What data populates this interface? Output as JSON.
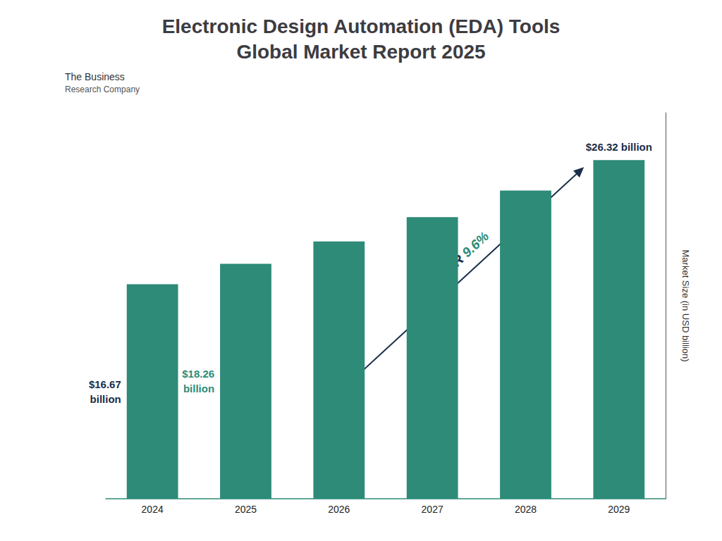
{
  "chart_data": {
    "type": "bar",
    "title": "Electronic Design Automation (EDA) Tools\nGlobal Market Report 2025",
    "categories": [
      "2024",
      "2025",
      "2026",
      "2027",
      "2028",
      "2029"
    ],
    "values": [
      16.67,
      18.26,
      20.0,
      21.88,
      23.95,
      26.32
    ],
    "color": "#2d8b78",
    "y_label": "Market Size (in USD billion)",
    "ylim": [
      0,
      30
    ],
    "yticks": [],
    "grid": false,
    "tick_labels": "x",
    "annotations": [
      {
        "category": "2024",
        "text": "$16.67\nbillion",
        "color": "#1a2e4a"
      },
      {
        "category": "2025",
        "text": "$18.26\nbillion",
        "color": "#2d8b78"
      },
      {
        "category": "2029",
        "text": "$26.32 billion",
        "color": "#1a2e4a"
      },
      {
        "text": [
          "CAGR ",
          "9.6%"
        ],
        "colors": [
          "#1a2e4a",
          "#2d8b78"
        ],
        "arrow": true
      },
      {
        "text": "The Business"
      },
      {
        "text": "Research Company"
      }
    ]
  }
}
